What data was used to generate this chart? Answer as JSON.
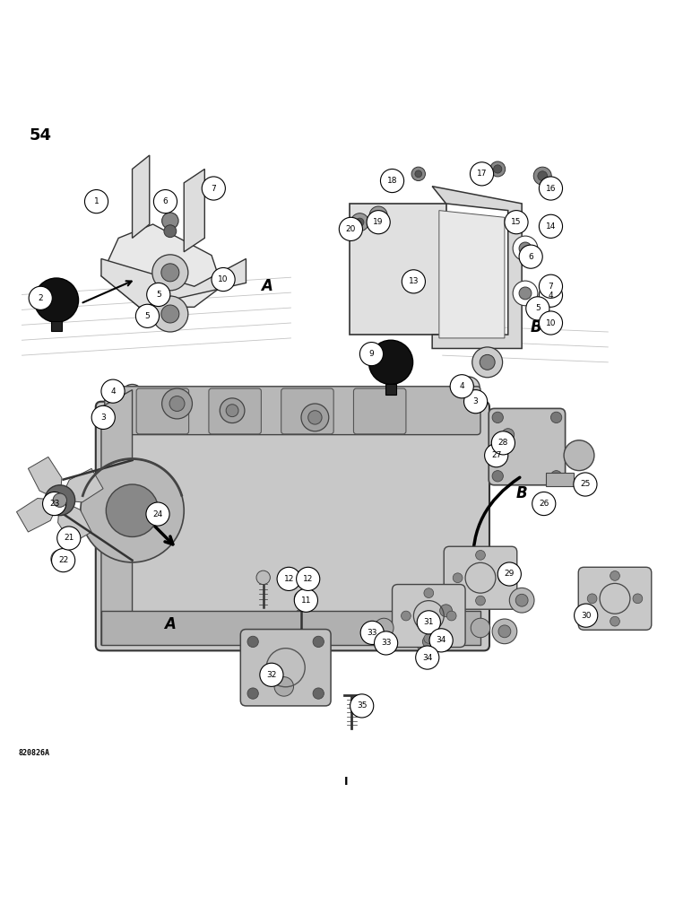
{
  "title": "54",
  "background_color": "#ffffff",
  "image_code": "820826A",
  "page_num": "54",
  "fig_width": 7.72,
  "fig_height": 10.0,
  "dpi": 100
}
